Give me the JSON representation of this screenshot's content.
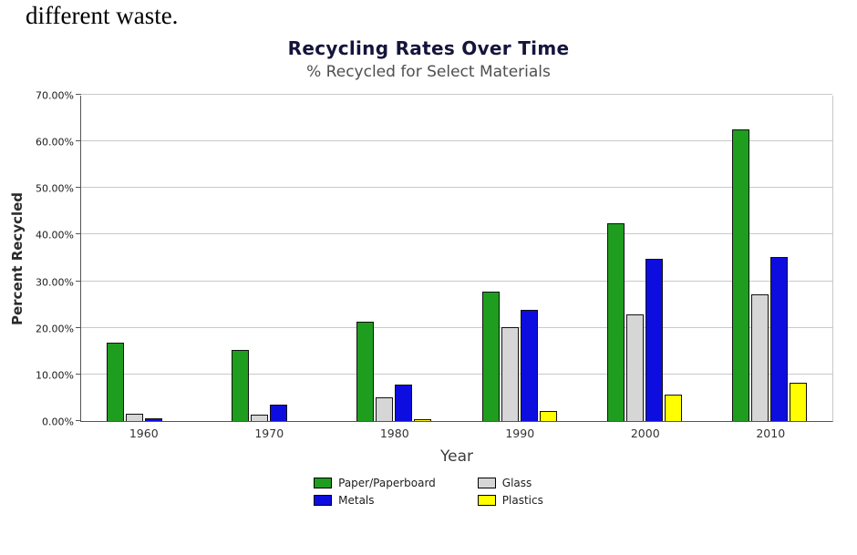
{
  "document": {
    "fragment": "different waste."
  },
  "chart_data": {
    "type": "bar",
    "title": "Recycling Rates Over Time",
    "subtitle": "% Recycled for Select Materials",
    "xlabel": "Year",
    "ylabel": "Percent Recycled",
    "categories": [
      "1960",
      "1970",
      "1980",
      "1990",
      "2000",
      "2010"
    ],
    "series": [
      {
        "name": "Paper/Paperboard",
        "color": "#1f9d1f",
        "values": [
          16.9,
          15.3,
          21.3,
          27.8,
          42.4,
          62.5
        ]
      },
      {
        "name": "Glass",
        "color": "#d6d6d6",
        "values": [
          1.5,
          1.3,
          5.0,
          20.1,
          22.8,
          27.1
        ]
      },
      {
        "name": "Metals",
        "color": "#0d0de0",
        "values": [
          0.5,
          3.5,
          7.9,
          23.8,
          34.8,
          35.1
        ]
      },
      {
        "name": "Plastics",
        "color": "#ffff00",
        "values": [
          0,
          0,
          0.4,
          2.2,
          5.6,
          8.2
        ]
      }
    ],
    "ylim": [
      0,
      70
    ],
    "yticks": [
      {
        "value": 0,
        "label": "0.00%"
      },
      {
        "value": 10,
        "label": "10.00%"
      },
      {
        "value": 20,
        "label": "20.00%"
      },
      {
        "value": 30,
        "label": "30.00%"
      },
      {
        "value": 40,
        "label": "40.00%"
      },
      {
        "value": 50,
        "label": "50.00%"
      },
      {
        "value": 60,
        "label": "60.00%"
      },
      {
        "value": 70,
        "label": "70.00%"
      }
    ],
    "grid": true,
    "legend_position": "bottom"
  }
}
